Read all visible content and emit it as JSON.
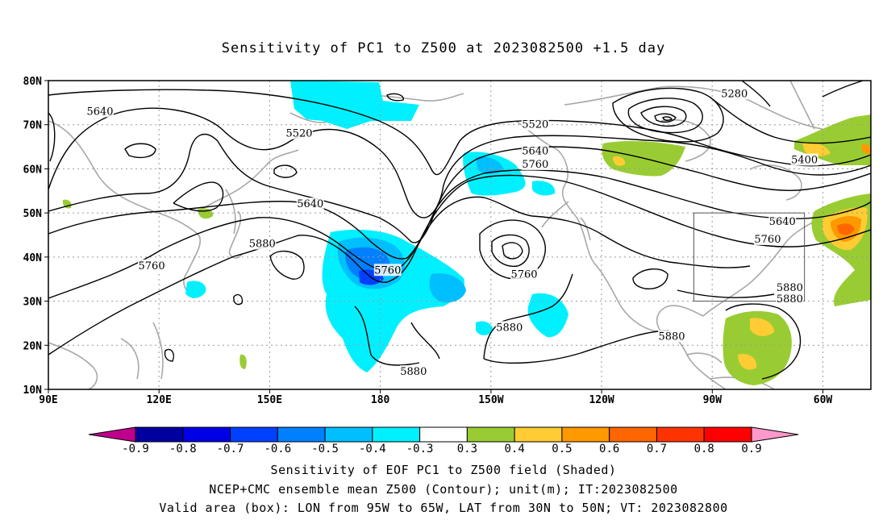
{
  "title": "Sensitivity of PC1 to Z500 at 2023082500 +1.5 day",
  "map": {
    "lon_ticks": [
      {
        "lon": 90,
        "label": "90E"
      },
      {
        "lon": 120,
        "label": "120E"
      },
      {
        "lon": 150,
        "label": "150E"
      },
      {
        "lon": 180,
        "label": "180"
      },
      {
        "lon": 210,
        "label": "150W"
      },
      {
        "lon": 240,
        "label": "120W"
      },
      {
        "lon": 270,
        "label": "90W"
      },
      {
        "lon": 300,
        "label": "60W"
      }
    ],
    "lat_ticks": [
      {
        "lat": 80,
        "label": "80N"
      },
      {
        "lat": 70,
        "label": "70N"
      },
      {
        "lat": 60,
        "label": "60N"
      },
      {
        "lat": 50,
        "label": "50N"
      },
      {
        "lat": 40,
        "label": "40N"
      },
      {
        "lat": 30,
        "label": "30N"
      },
      {
        "lat": 20,
        "label": "20N"
      },
      {
        "lat": 10,
        "label": "10N"
      }
    ],
    "lon_range": [
      90,
      313
    ],
    "lat_range": [
      10,
      80
    ],
    "box": {
      "lon_min": 265,
      "lon_max": 295,
      "lat_min": 30,
      "lat_max": 50
    },
    "contour_labels": [
      {
        "text": "5640",
        "lon": 104,
        "lat": 73
      },
      {
        "text": "5520",
        "lon": 158,
        "lat": 68
      },
      {
        "text": "5640",
        "lon": 161,
        "lat": 52
      },
      {
        "text": "5880",
        "lon": 148,
        "lat": 43
      },
      {
        "text": "5760",
        "lon": 118,
        "lat": 38
      },
      {
        "text": "5760",
        "lon": 182,
        "lat": 37
      },
      {
        "text": "5880",
        "lon": 189,
        "lat": 14
      },
      {
        "text": "5520",
        "lon": 222,
        "lat": 70
      },
      {
        "text": "5640",
        "lon": 222,
        "lat": 64
      },
      {
        "text": "5760",
        "lon": 222,
        "lat": 61
      },
      {
        "text": "5760",
        "lon": 219,
        "lat": 36
      },
      {
        "text": "5880",
        "lon": 215,
        "lat": 24
      },
      {
        "text": "5880",
        "lon": 259,
        "lat": 22
      },
      {
        "text": "5280",
        "lon": 276,
        "lat": 77
      },
      {
        "text": "5400",
        "lon": 295,
        "lat": 62
      },
      {
        "text": "5640",
        "lon": 289,
        "lat": 48
      },
      {
        "text": "5760",
        "lon": 285,
        "lat": 44
      },
      {
        "text": "5880",
        "lon": 291,
        "lat": 33
      },
      {
        "text": "5880",
        "lon": 291,
        "lat": 30.5
      }
    ]
  },
  "colorbar": {
    "labels": [
      "-0.9",
      "-0.8",
      "-0.7",
      "-0.6",
      "-0.5",
      "-0.4",
      "-0.3",
      "0.3",
      "0.4",
      "0.5",
      "0.6",
      "0.7",
      "0.8",
      "0.9"
    ],
    "colors": [
      "#0000a0",
      "#0000e6",
      "#0040ff",
      "#0080ff",
      "#00bfff",
      "#00f0ff",
      "#ffffff",
      "#99cc33",
      "#ffcc33",
      "#ff9900",
      "#ff6600",
      "#ff3300",
      "#ff0000"
    ],
    "low_extend_color": "#c0008c",
    "high_extend_color": "#ff99cc"
  },
  "caption": {
    "line1": "Sensitivity of EOF PC1 to Z500 field (Shaded)",
    "line2": "NCEP+CMC ensemble mean Z500 (Contour); unit(m); IT:2023082500",
    "line3": "Valid area (box): LON from 95W to 65W, LAT from 30N to 50N; VT: 2023082800"
  }
}
